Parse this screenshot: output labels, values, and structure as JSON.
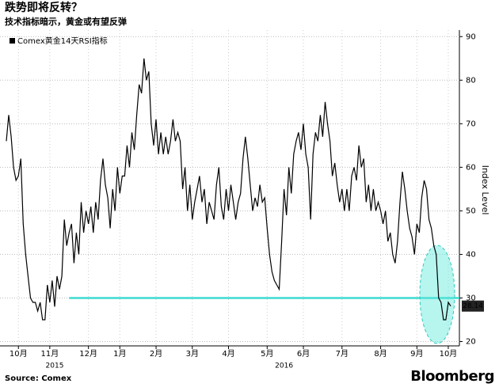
{
  "chart_data": {
    "type": "line",
    "title": "跌势即将反转？",
    "subtitle": "技术指标暗示，黄金或有望反弹",
    "y_label": "Index Level",
    "source": "Source:  Comex",
    "brand": "Bloomberg",
    "series": [
      {
        "name": "Comex黄金14天RSI指标",
        "color": "#000000",
        "values": [
          66,
          72,
          67,
          60,
          57,
          58,
          62,
          47,
          40,
          35,
          30,
          29,
          29,
          27,
          29,
          25,
          25,
          33,
          29,
          34,
          28,
          35,
          32,
          35,
          48,
          42,
          45,
          47,
          38,
          45,
          40,
          52,
          45,
          50,
          47,
          51,
          45,
          52,
          48,
          57,
          62,
          56,
          53,
          46,
          55,
          50,
          60,
          54,
          58,
          58,
          65,
          60,
          68,
          64,
          72,
          79,
          77,
          85,
          80,
          82,
          70,
          65,
          71,
          63,
          68,
          63,
          67,
          63,
          66,
          71,
          66,
          68,
          66,
          55,
          60,
          50,
          56,
          48,
          52,
          55,
          58,
          52,
          55,
          47,
          52,
          50,
          48,
          56,
          60,
          51,
          48,
          55,
          50,
          56,
          52,
          48,
          52,
          54,
          62,
          67,
          62,
          56,
          50,
          53,
          51,
          56,
          52,
          53,
          46,
          40,
          36,
          34,
          33,
          32,
          43,
          55,
          49,
          60,
          54,
          63,
          66,
          68,
          64,
          70,
          63,
          60,
          48,
          63,
          68,
          66,
          72,
          67,
          75,
          70,
          66,
          58,
          61,
          56,
          52,
          55,
          50,
          55,
          50,
          58,
          60,
          57,
          65,
          60,
          62,
          52,
          56,
          50,
          55,
          50,
          52,
          50,
          47,
          50,
          43,
          45,
          40,
          38,
          43,
          52,
          59,
          55,
          50,
          46,
          44,
          40,
          47,
          45,
          53,
          57,
          55,
          48,
          46,
          42,
          40,
          30,
          29,
          25,
          25,
          29,
          28.14
        ]
      }
    ],
    "reference_line": {
      "value": 30,
      "start": 26,
      "color": "#3ddbd0"
    },
    "xlim": [
      0,
      184
    ],
    "xticks": [
      {
        "value": 5,
        "label": "10月"
      },
      {
        "value": 18,
        "label": "11月"
      },
      {
        "value": 34,
        "label": "12月"
      },
      {
        "value": 47,
        "label": "1月"
      },
      {
        "value": 62,
        "label": "2月"
      },
      {
        "value": 77,
        "label": "3月"
      },
      {
        "value": 92,
        "label": "4月"
      },
      {
        "value": 108,
        "label": "5月"
      },
      {
        "value": 123,
        "label": "6月"
      },
      {
        "value": 139,
        "label": "7月"
      },
      {
        "value": 155,
        "label": "8月"
      },
      {
        "value": 170,
        "label": "9月"
      },
      {
        "value": 183,
        "label": "10月"
      }
    ],
    "years": [
      {
        "value": 20,
        "label": "2015"
      },
      {
        "value": 115,
        "label": "2016"
      }
    ],
    "ylim": [
      19,
      91.5
    ],
    "yticks": [
      20,
      30,
      40,
      50,
      60,
      70,
      80,
      90
    ],
    "grid": true
  }
}
